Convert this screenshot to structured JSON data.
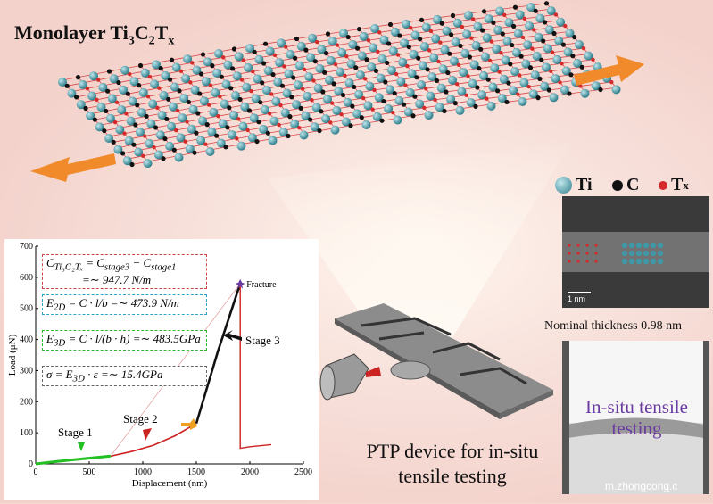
{
  "title": {
    "main": "Monolayer Ti",
    "sub1": "3",
    "mid": "C",
    "sub2": "2",
    "end": "T",
    "sub3": "x"
  },
  "legend": {
    "ti": "Ti",
    "c": "C",
    "tx": "T",
    "tx_sub": "x"
  },
  "colors": {
    "ti": "#3f98a6",
    "c": "#111111",
    "tx": "#d42a2a",
    "arrow": "#f08a2a",
    "stage1": "#22c022",
    "stage2": "#cc2222",
    "stage3": "#111111"
  },
  "tem": {
    "scale_bar": "1 nm",
    "nominal_thickness": "Nominal thickness 0.98 nm",
    "insitu_line1": "In-situ tensile",
    "insitu_line2": "testing"
  },
  "device": {
    "caption_line1": "PTP device for in-situ",
    "caption_line2": "tensile testing"
  },
  "watermark": "m.zhongcong.c",
  "chart_data": {
    "type": "line",
    "xlabel": "Displacement (nm)",
    "ylabel": "Load (μN)",
    "xlim": [
      0,
      2500
    ],
    "ylim": [
      0,
      700
    ],
    "x_ticks": [
      "0",
      "500",
      "1000",
      "1500",
      "2000",
      "2500"
    ],
    "y_ticks": [
      "0",
      "100",
      "200",
      "300",
      "400",
      "500",
      "600",
      "700"
    ],
    "series": [
      {
        "name": "Stage 1",
        "x": [
          0,
          200,
          400,
          700
        ],
        "y": [
          0,
          8,
          15,
          25
        ]
      },
      {
        "name": "Stage 2",
        "x": [
          700,
          900,
          1100,
          1300,
          1500
        ],
        "y": [
          25,
          40,
          60,
          90,
          130
        ]
      },
      {
        "name": "Stage 3",
        "x": [
          1500,
          1700,
          1910
        ],
        "y": [
          130,
          360,
          580
        ]
      },
      {
        "name": "",
        "x": [
          1910,
          1910,
          2000,
          2200
        ],
        "y": [
          580,
          50,
          55,
          62
        ]
      }
    ],
    "annotations": {
      "fracture": "Fracture",
      "fracture_x": 1910,
      "fracture_y": 580,
      "stage1": "Stage 1",
      "stage2": "Stage 2",
      "stage3": "Stage 3"
    },
    "equations": {
      "eq1_a": "C",
      "eq1_b": "Ti₃C₂Tₓ",
      "eq1_c": " = C",
      "eq1_d": "stage3",
      "eq1_e": " − C",
      "eq1_f": "stage1",
      "eq1_line2": "=∼ 947.7 N/m",
      "eq2_a": "E",
      "eq2_b": "2D",
      "eq2_c": " = C · l/b =∼ 473.9 N/m",
      "eq3_a": "E",
      "eq3_b": "3D",
      "eq3_c": " = C · l/(b · h) =∼ 483.5GPa",
      "eq4_a": "σ = E",
      "eq4_b": "3D",
      "eq4_c": " · ε =∼ 15.4GPa"
    }
  }
}
